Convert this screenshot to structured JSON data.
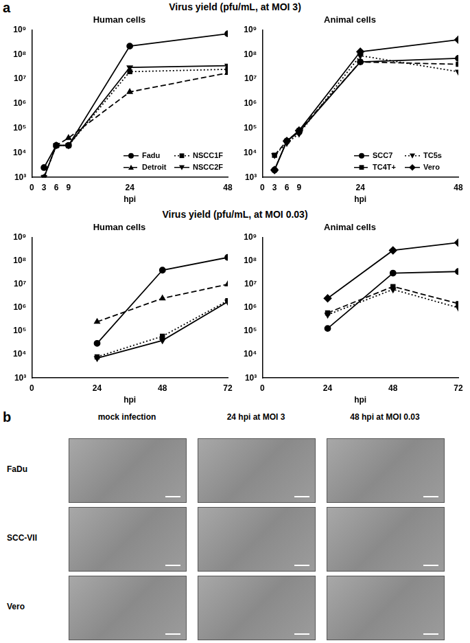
{
  "chart_data": [
    {
      "type": "line",
      "title": "Human cells",
      "x_label": "hpi",
      "xlim": [
        0,
        48
      ],
      "xticks": [
        0,
        3,
        6,
        9,
        24,
        48
      ],
      "ylim": [
        1000,
        1000000000
      ],
      "yticks": [
        {
          "value": 1000,
          "label": "10³"
        },
        {
          "value": 10000,
          "label": "10⁴"
        },
        {
          "value": 100000,
          "label": "10⁵"
        },
        {
          "value": 1000000,
          "label": "10⁶"
        },
        {
          "value": 10000000,
          "label": "10⁷"
        },
        {
          "value": 100000000,
          "label": "10⁸"
        },
        {
          "value": 1000000000,
          "label": "10⁹"
        }
      ],
      "log": "y",
      "grid": false,
      "legend": "lower right",
      "x": [
        3,
        6,
        9,
        24,
        48
      ],
      "series": [
        {
          "name": "Fadu",
          "color": "#000000",
          "marker": "circle",
          "line_style": "solid",
          "values": [
            2500,
            20000,
            20000,
            220000000,
            700000000
          ]
        },
        {
          "name": "Detroit",
          "color": "#000000",
          "marker": "triangle",
          "line_style": "dashed",
          "values": [
            1000,
            20000,
            40000,
            3000000,
            18000000
          ]
        },
        {
          "name": "NSCC1F",
          "color": "#000000",
          "marker": "square",
          "line_style": "dotted",
          "values": [
            1000,
            20000,
            20000,
            20000000,
            25000000
          ]
        },
        {
          "name": "NSCC2F",
          "color": "#000000",
          "marker": "triangle-down",
          "line_style": "solid",
          "values": [
            1000,
            20000,
            20000,
            30000000,
            35000000
          ]
        }
      ]
    },
    {
      "type": "line",
      "title": "Animal cells",
      "x_label": "hpi",
      "xlim": [
        0,
        48
      ],
      "xticks": [
        0,
        3,
        6,
        9,
        24,
        48
      ],
      "ylim": [
        1000,
        1000000000
      ],
      "yticks": [
        {
          "value": 1000,
          "label": "10³"
        },
        {
          "value": 10000,
          "label": "10⁴"
        },
        {
          "value": 100000,
          "label": "10⁵"
        },
        {
          "value": 1000000,
          "label": "10⁶"
        },
        {
          "value": 10000000,
          "label": "10⁷"
        },
        {
          "value": 100000000,
          "label": "10⁸"
        },
        {
          "value": 1000000000,
          "label": "10⁹"
        }
      ],
      "log": "y",
      "grid": false,
      "legend": "lower right",
      "x": [
        3,
        6,
        9,
        24,
        48
      ],
      "series": [
        {
          "name": "SCC7",
          "color": "#000000",
          "marker": "circle",
          "line_style": "solid",
          "values": [
            2000,
            30000,
            70000,
            50000000,
            70000000
          ]
        },
        {
          "name": "TC4T+",
          "color": "#000000",
          "marker": "square",
          "line_style": "dashed",
          "values": [
            8000,
            30000,
            80000,
            50000000,
            40000000
          ]
        },
        {
          "name": "TC5s",
          "color": "#000000",
          "marker": "triangle-down",
          "line_style": "dotted",
          "values": [
            8000,
            25000,
            60000,
            90000000,
            20000000
          ]
        },
        {
          "name": "Vero",
          "color": "#000000",
          "marker": "diamond",
          "line_style": "solid",
          "values": [
            2000,
            30000,
            80000,
            130000000,
            400000000
          ]
        }
      ]
    },
    {
      "type": "line",
      "title": "Human cells",
      "x_label": "hpi",
      "xlim": [
        0,
        72
      ],
      "xticks": [
        0,
        24,
        48,
        72
      ],
      "ylim": [
        1000,
        1000000000
      ],
      "yticks": [
        {
          "value": 1000,
          "label": "10³"
        },
        {
          "value": 10000,
          "label": "10⁴"
        },
        {
          "value": 100000,
          "label": "10⁵"
        },
        {
          "value": 1000000,
          "label": "10⁶"
        },
        {
          "value": 10000000,
          "label": "10⁷"
        },
        {
          "value": 100000000,
          "label": "10⁸"
        },
        {
          "value": 1000000000,
          "label": "10⁹"
        }
      ],
      "log": "y",
      "grid": false,
      "x": [
        24,
        48,
        72
      ],
      "series": [
        {
          "name": "Fadu",
          "color": "#000000",
          "marker": "circle",
          "line_style": "solid",
          "values": [
            30000,
            40000000,
            140000000
          ]
        },
        {
          "name": "Detroit",
          "color": "#000000",
          "marker": "triangle",
          "line_style": "dashed",
          "values": [
            250000,
            2500000,
            10000000
          ]
        },
        {
          "name": "NSCC1F",
          "color": "#000000",
          "marker": "square",
          "line_style": "dotted",
          "values": [
            8000,
            60000,
            2000000
          ]
        },
        {
          "name": "NSCC2F",
          "color": "#000000",
          "marker": "triangle-down",
          "line_style": "solid",
          "values": [
            7000,
            40000,
            1800000
          ]
        }
      ]
    },
    {
      "type": "line",
      "title": "Animal cells",
      "x_label": "hpi",
      "xlim": [
        0,
        72
      ],
      "xticks": [
        0,
        24,
        48,
        72
      ],
      "ylim": [
        1000,
        1000000000
      ],
      "yticks": [
        {
          "value": 1000,
          "label": "10³"
        },
        {
          "value": 10000,
          "label": "10⁴"
        },
        {
          "value": 100000,
          "label": "10⁵"
        },
        {
          "value": 1000000,
          "label": "10⁶"
        },
        {
          "value": 10000000,
          "label": "10⁷"
        },
        {
          "value": 100000000,
          "label": "10⁸"
        },
        {
          "value": 1000000000,
          "label": "10⁹"
        }
      ],
      "log": "y",
      "grid": false,
      "x": [
        24,
        48,
        72
      ],
      "series": [
        {
          "name": "SCC7",
          "color": "#000000",
          "marker": "circle",
          "line_style": "solid",
          "values": [
            130000,
            30000000,
            35000000
          ]
        },
        {
          "name": "TC4T+",
          "color": "#000000",
          "marker": "square",
          "line_style": "dashed",
          "values": [
            600000,
            8000000,
            1500000
          ]
        },
        {
          "name": "TC5s",
          "color": "#000000",
          "marker": "triangle-down",
          "line_style": "dotted",
          "values": [
            500000,
            6000000,
            1000000
          ]
        },
        {
          "name": "Vero",
          "color": "#000000",
          "marker": "diamond",
          "line_style": "solid",
          "values": [
            2500000,
            280000000,
            600000000
          ]
        }
      ]
    }
  ],
  "panel_a": {
    "label": "a",
    "section_titles": [
      "Virus yield (pfu/mL, at MOI 3)",
      "Virus yield (pfu/mL, at MOI 0.03)"
    ]
  },
  "panel_b": {
    "label": "b",
    "columns": [
      "mock infection",
      "24 hpi at MOI 3",
      "48 hpi at MOI 0.03"
    ],
    "rows": [
      "FaDu",
      "SCC-VII",
      "Vero"
    ]
  }
}
